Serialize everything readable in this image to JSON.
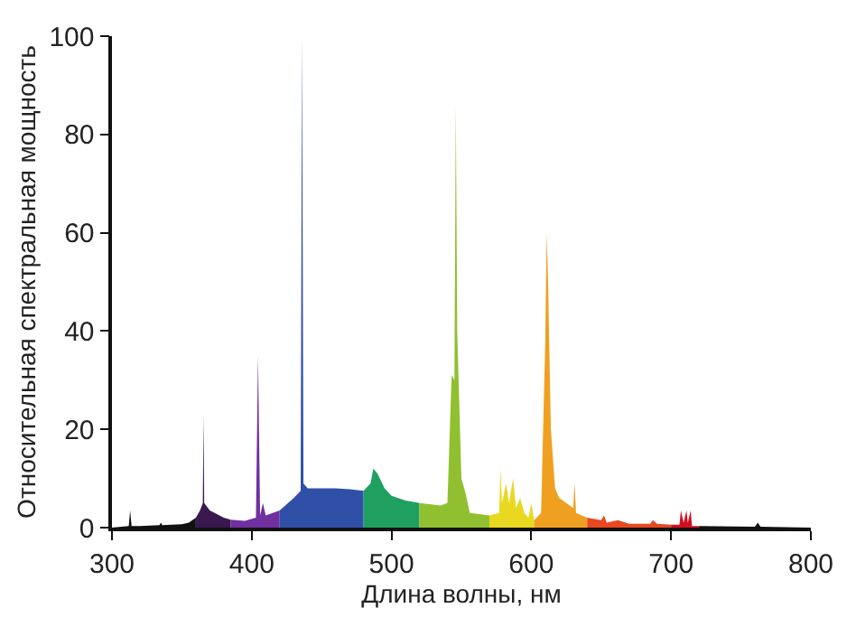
{
  "chart_data": {
    "type": "area",
    "xlabel": "Длина волны, нм",
    "ylabel": "Относительная спектральная мощность",
    "xlim": [
      300,
      800
    ],
    "xticks": [
      300,
      400,
      500,
      600,
      700,
      800
    ],
    "ylim": [
      0,
      100
    ],
    "yticks": [
      0,
      20,
      40,
      60,
      80,
      100
    ],
    "series": [
      {
        "color": "#111111",
        "x": [
          300,
          312,
          313,
          314,
          320,
          334,
          335,
          336,
          350,
          355,
          360
        ],
        "values": [
          0,
          0.3,
          3.5,
          0.3,
          0.3,
          0.5,
          1,
          0.5,
          0.7,
          1,
          2
        ]
      },
      {
        "color": "#3a1850",
        "x": [
          360,
          363,
          365,
          365.5,
          366,
          370,
          380,
          385
        ],
        "values": [
          2,
          3.5,
          5,
          23,
          5,
          3.5,
          2,
          1.6
        ]
      },
      {
        "color": "#7030a0",
        "x": [
          385,
          395,
          403,
          404.5,
          406,
          408,
          410,
          420
        ],
        "values": [
          1.6,
          1.4,
          2,
          35,
          2.5,
          5,
          2.5,
          3.5
        ]
      },
      {
        "color": "#3050a8",
        "x": [
          420,
          430,
          435,
          436,
          437,
          440,
          450,
          460,
          470,
          480
        ],
        "values": [
          3.5,
          6,
          7.5,
          100,
          9,
          8,
          8,
          8,
          7.8,
          7.5
        ]
      },
      {
        "color": "#20a060",
        "x": [
          480,
          485,
          487,
          490,
          495,
          500,
          510,
          520
        ],
        "values": [
          7.5,
          9,
          12,
          11,
          8,
          6.5,
          5.5,
          5
        ]
      },
      {
        "color": "#90c030",
        "x": [
          520,
          535,
          540,
          543,
          545,
          546,
          547,
          550,
          553,
          556,
          570
        ],
        "values": [
          5,
          4.5,
          5,
          31,
          30,
          86,
          40,
          10,
          7,
          3,
          2.5
        ]
      },
      {
        "color": "#e8d820",
        "x": [
          570,
          577,
          578,
          579,
          582,
          584,
          587,
          589,
          592,
          595,
          598,
          600,
          602
        ],
        "values": [
          2.5,
          3,
          12,
          5,
          9,
          5,
          10,
          4,
          6,
          3,
          2,
          5,
          1.5
        ]
      },
      {
        "color": "#f0a020",
        "x": [
          602,
          607,
          610,
          611,
          612,
          614,
          617,
          620,
          625,
          630,
          631,
          632,
          640
        ],
        "values": [
          1.5,
          3,
          38,
          60,
          50,
          20,
          8,
          6,
          5,
          4,
          9,
          3,
          2
        ]
      },
      {
        "color": "#e84820",
        "x": [
          640,
          650,
          652,
          654,
          662,
          670,
          685,
          687,
          690,
          700
        ],
        "values": [
          2,
          1.5,
          2.5,
          1,
          1.5,
          0.8,
          0.8,
          1.5,
          0.8,
          0.6
        ]
      },
      {
        "color": "#d01020",
        "x": [
          700,
          706,
          707,
          709,
          711,
          712,
          714,
          715,
          720
        ],
        "values": [
          0.6,
          0.6,
          3.5,
          1,
          3.5,
          1,
          3.5,
          0.3,
          0.3
        ]
      },
      {
        "color": "#111111",
        "x": [
          720,
          760,
          762,
          764,
          800
        ],
        "values": [
          0.3,
          0.2,
          1,
          0.2,
          0
        ]
      }
    ]
  }
}
